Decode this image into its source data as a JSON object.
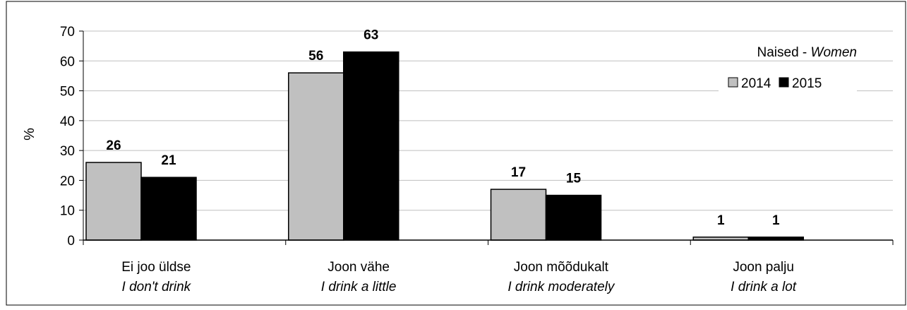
{
  "chart_data": {
    "type": "bar",
    "title_main": "Naised - ",
    "title_italic": "Women",
    "ylabel": "%",
    "ylim": [
      0,
      70
    ],
    "yticks": [
      0,
      10,
      20,
      30,
      40,
      50,
      60,
      70
    ],
    "grid": true,
    "legend_position": "top-right",
    "categories": [
      {
        "main": "Ei joo üldse",
        "sub": "I don't drink"
      },
      {
        "main": "Joon vähe",
        "sub": "I drink a little"
      },
      {
        "main": "Joon mõõdukalt",
        "sub": "I drink moderately"
      },
      {
        "main": "Joon palju",
        "sub": "I drink a lot"
      }
    ],
    "series": [
      {
        "name": "2014",
        "color": "#c0c0c0",
        "values": [
          26,
          56,
          17,
          1
        ]
      },
      {
        "name": "2015",
        "color": "#000000",
        "values": [
          21,
          63,
          15,
          1
        ]
      }
    ]
  }
}
